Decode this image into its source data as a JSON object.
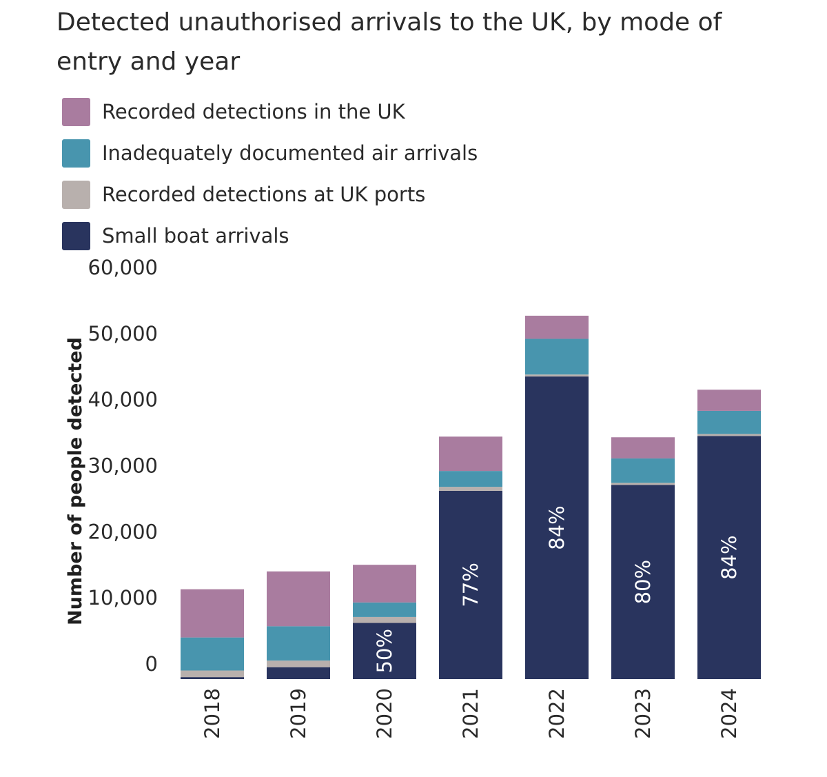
{
  "chart_data": {
    "type": "bar",
    "stacked": true,
    "title": "Detected unauthorised arrivals to the UK, by mode of entry and year",
    "xlabel": "",
    "ylabel": "Number of people detected",
    "ylim": [
      0,
      60000
    ],
    "yticks": [
      0,
      10000,
      20000,
      30000,
      40000,
      50000,
      60000
    ],
    "ytick_labels": [
      "0",
      "10,000",
      "20,000",
      "30,000",
      "40,000",
      "50,000",
      "60,000"
    ],
    "categories": [
      "2018",
      "2019",
      "2020",
      "2021",
      "2022",
      "2023",
      "2024"
    ],
    "series": [
      {
        "name": "Small boat arrivals",
        "color": "#29345e",
        "values": [
          300,
          1800,
          8500,
          28500,
          45800,
          29400,
          36800
        ]
      },
      {
        "name": "Recorded detections at UK ports",
        "color": "#b8b0ad",
        "values": [
          1000,
          1000,
          900,
          600,
          300,
          300,
          300
        ]
      },
      {
        "name": "Inadequately documented air arrivals",
        "color": "#4895ae",
        "values": [
          5000,
          5200,
          2200,
          2400,
          5400,
          3700,
          3500
        ]
      },
      {
        "name": "Recorded detections in the UK",
        "color": "#a97c9f",
        "values": [
          7300,
          8300,
          5700,
          5200,
          3500,
          3200,
          3200
        ]
      }
    ],
    "annotations": [
      {
        "category": "2018",
        "text": ""
      },
      {
        "category": "2019",
        "text": ""
      },
      {
        "category": "2020",
        "text": "50%"
      },
      {
        "category": "2021",
        "text": "77%"
      },
      {
        "category": "2022",
        "text": "84%"
      },
      {
        "category": "2023",
        "text": "80%"
      },
      {
        "category": "2024",
        "text": "84%"
      }
    ],
    "legend": {
      "position": "top-left",
      "items": [
        {
          "label": "Recorded detections in the UK",
          "color": "#a97c9f"
        },
        {
          "label": "Inadequately documented air arrivals",
          "color": "#4895ae"
        },
        {
          "label": "Recorded detections at UK ports",
          "color": "#b8b0ad"
        },
        {
          "label": "Small boat arrivals",
          "color": "#29345e"
        }
      ]
    }
  }
}
